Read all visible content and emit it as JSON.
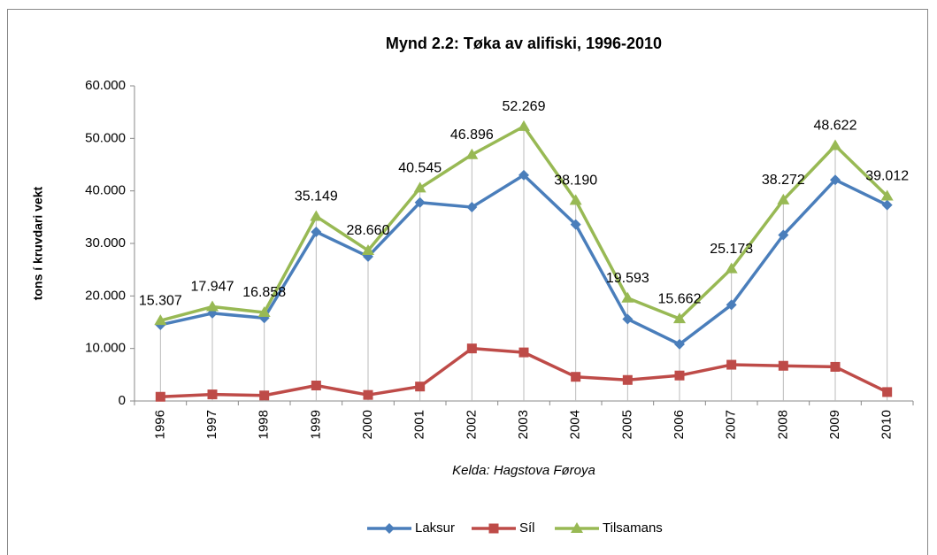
{
  "chart_data": {
    "type": "line",
    "title": "Mynd 2.2: Tøka av alifiski, 1996-2010",
    "y_label": "tons í kruvdari vekt",
    "annotation": "Kelda: Hagstova Føroya",
    "categories": [
      "1996",
      "1997",
      "1998",
      "1999",
      "2000",
      "2001",
      "2002",
      "2003",
      "2004",
      "2005",
      "2006",
      "2007",
      "2008",
      "2009",
      "2010"
    ],
    "series": [
      {
        "name": "Laksur",
        "color": "#4a7ebb",
        "marker": "diamond",
        "values": [
          14500,
          16700,
          15800,
          32200,
          27500,
          37800,
          36900,
          43000,
          33600,
          15600,
          10800,
          18300,
          31600,
          42100,
          37300
        ]
      },
      {
        "name": "Síl",
        "color": "#be4b48",
        "marker": "square",
        "values": [
          800,
          1250,
          1050,
          2950,
          1150,
          2750,
          10000,
          9250,
          4600,
          4000,
          4850,
          6900,
          6700,
          6500,
          1700
        ]
      },
      {
        "name": "Tilsamans",
        "color": "#98b954",
        "marker": "triangle",
        "values": [
          15307,
          17947,
          16858,
          35149,
          28660,
          40545,
          46896,
          52269,
          38190,
          19593,
          15662,
          25173,
          38272,
          48622,
          39012
        ],
        "value_labels": [
          "15.307",
          "17.947",
          "16.858",
          "35.149",
          "28.660",
          "40.545",
          "46.896",
          "52.269",
          "38.190",
          "19.593",
          "15.662",
          "25.173",
          "38.272",
          "48.622",
          "39.012"
        ]
      }
    ],
    "ylim": [
      0,
      60000
    ],
    "yticks": [
      0,
      {
        "value": 10000,
        "label": "10.000"
      },
      {
        "value": 20000,
        "label": "20.000"
      },
      {
        "value": 30000,
        "label": "30.000"
      },
      {
        "value": 40000,
        "label": "40.000"
      },
      {
        "value": 50000,
        "label": "50.000"
      },
      {
        "value": 60000,
        "label": "60.000"
      }
    ],
    "grid": false,
    "drop_lines": true,
    "legend": "bottom"
  }
}
